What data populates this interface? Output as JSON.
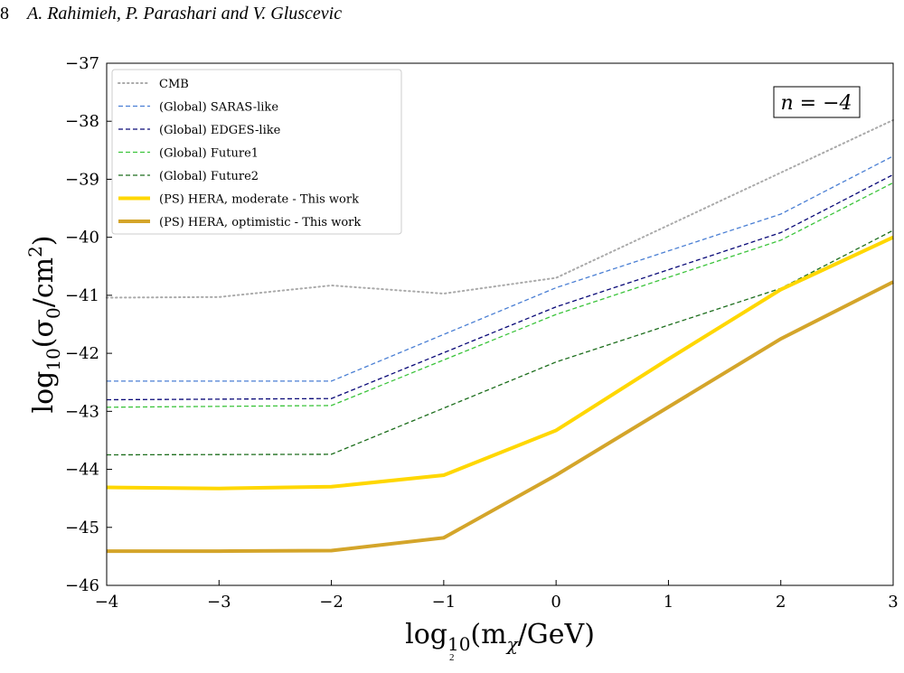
{
  "page_header": {
    "page_number": "8",
    "authors": "A. Rahimieh, P. Parashari and V. Gluscevic"
  },
  "footnote_fragment": "2",
  "chart_data": {
    "type": "line",
    "xlabel_base": "log",
    "xlabel_sub": "10",
    "xlabel_rest": "(m",
    "xlabel_chi": "χ",
    "xlabel_end": "/GeV)",
    "ylabel_base": "log",
    "ylabel_sub": "10",
    "ylabel_rest": "(σ",
    "ylabel_sub2": "0",
    "ylabel_mid": "/cm",
    "ylabel_sup": "2",
    "ylabel_end": ")",
    "xlim": [
      -4,
      3
    ],
    "ylim": [
      -46,
      -37
    ],
    "xticks": [
      -4,
      -3,
      -2,
      -1,
      0,
      1,
      2,
      3
    ],
    "yticks": [
      -46,
      -45,
      -44,
      -43,
      -42,
      -41,
      -40,
      -39,
      -38,
      -37
    ],
    "xtick_labels": [
      "−4",
      "−3",
      "−2",
      "−1",
      "0",
      "1",
      "2",
      "3"
    ],
    "ytick_labels": [
      "−46",
      "−45",
      "−44",
      "−43",
      "−42",
      "−41",
      "−40",
      "−39",
      "−38",
      "−37"
    ],
    "annotation": "n = −4",
    "legend_position": "upper-left",
    "grid": false,
    "series": [
      {
        "name": "CMB",
        "color": "#aaaaaa",
        "style": "dotted",
        "x": [
          -4,
          -3,
          -2,
          -1,
          0,
          3
        ],
        "y": [
          -41.04,
          -41.03,
          -40.83,
          -40.97,
          -40.7,
          -37.98
        ]
      },
      {
        "name": "(Global) SARAS-like",
        "color": "#4a7fd4",
        "style": "dashed",
        "x": [
          -4,
          -2,
          0,
          2,
          3
        ],
        "y": [
          -42.48,
          -42.48,
          -40.87,
          -39.6,
          -38.6
        ]
      },
      {
        "name": "(Global) EDGES-like",
        "color": "#0a0a78",
        "style": "dashed",
        "x": [
          -4,
          -2,
          0,
          2,
          3
        ],
        "y": [
          -42.8,
          -42.78,
          -41.2,
          -39.92,
          -38.92
        ]
      },
      {
        "name": "(Global) Future1",
        "color": "#3cc43c",
        "style": "dashed",
        "x": [
          -4,
          -2,
          0,
          2,
          3
        ],
        "y": [
          -42.93,
          -42.9,
          -41.33,
          -40.05,
          -39.06
        ]
      },
      {
        "name": "(Global) Future2",
        "color": "#1d6e1d",
        "style": "dashed",
        "x": [
          -4,
          -2,
          0,
          2,
          3
        ],
        "y": [
          -43.75,
          -43.74,
          -42.15,
          -40.88,
          -39.88
        ]
      },
      {
        "name": "(PS) HERA, moderate - This work",
        "color": "#ffd700",
        "style": "solid-thick",
        "x": [
          -4,
          -3,
          -2,
          -1,
          0,
          1,
          2,
          3
        ],
        "y": [
          -44.31,
          -44.33,
          -44.3,
          -44.1,
          -43.33,
          -42.1,
          -40.9,
          -40.0
        ]
      },
      {
        "name": "(PS) HERA, optimistic - This work",
        "color": "#d4a52a",
        "style": "solid-thick",
        "x": [
          -4,
          -3,
          -2,
          -1,
          0,
          2,
          3
        ],
        "y": [
          -45.41,
          -45.41,
          -45.4,
          -45.18,
          -44.1,
          -41.75,
          -40.77
        ]
      }
    ]
  }
}
